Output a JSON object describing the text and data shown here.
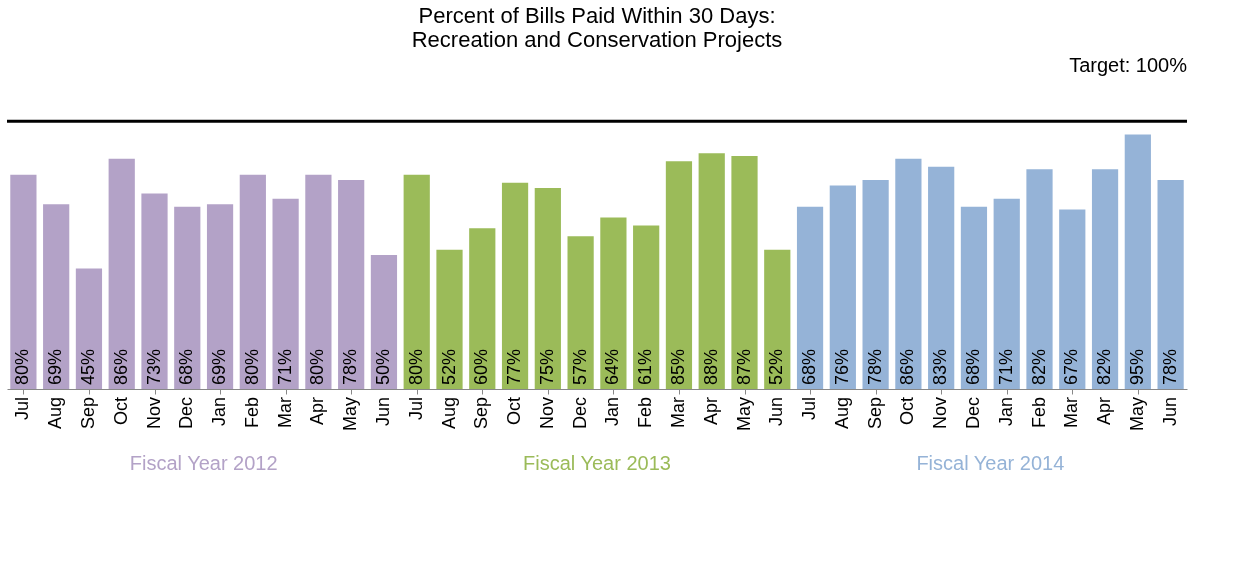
{
  "chart_data": {
    "type": "bar",
    "title": [
      "Percent of Bills Paid Within 30 Days:",
      "Recreation and Conservation Projects"
    ],
    "categories": [
      "Jul",
      "Aug",
      "Sep",
      "Oct",
      "Nov",
      "Dec",
      "Jan",
      "Feb",
      "Mar",
      "Apr",
      "May",
      "Jun",
      "Jul",
      "Aug",
      "Sep",
      "Oct",
      "Nov",
      "Dec",
      "Jan",
      "Feb",
      "Mar",
      "Apr",
      "May",
      "Jun",
      "Jul",
      "Aug",
      "Sep",
      "Oct",
      "Nov",
      "Dec",
      "Jan",
      "Feb",
      "Mar",
      "Apr",
      "May",
      "Jun"
    ],
    "series": [
      {
        "name": "Fiscal Year 2012",
        "color": "#b3a2c7",
        "values": [
          80,
          69,
          45,
          86,
          73,
          68,
          69,
          80,
          71,
          80,
          78,
          50,
          null,
          null,
          null,
          null,
          null,
          null,
          null,
          null,
          null,
          null,
          null,
          null,
          null,
          null,
          null,
          null,
          null,
          null,
          null,
          null,
          null,
          null,
          null,
          null
        ],
        "value_labels": [
          "80%",
          "69%",
          "45%",
          "86%",
          "73%",
          "68%",
          "69%",
          "80%",
          "71%",
          "80%",
          "78%",
          "50%",
          null,
          null,
          null,
          null,
          null,
          null,
          null,
          null,
          null,
          null,
          null,
          null,
          null,
          null,
          null,
          null,
          null,
          null,
          null,
          null,
          null,
          null,
          null,
          null
        ]
      },
      {
        "name": "Fiscal Year 2013",
        "color": "#9bbb59",
        "values": [
          null,
          null,
          null,
          null,
          null,
          null,
          null,
          null,
          null,
          null,
          null,
          null,
          80,
          52,
          60,
          77,
          75,
          57,
          64,
          61,
          85,
          88,
          87,
          52,
          null,
          null,
          null,
          null,
          null,
          null,
          null,
          null,
          null,
          null,
          null,
          null
        ],
        "value_labels": [
          null,
          null,
          null,
          null,
          null,
          null,
          null,
          null,
          null,
          null,
          null,
          null,
          "80%",
          "52%",
          "60%",
          "77%",
          "75%",
          "57%",
          "64%",
          "61%",
          "85%",
          "88%",
          "87%",
          "52%",
          null,
          null,
          null,
          null,
          null,
          null,
          null,
          null,
          null,
          null,
          null,
          null
        ]
      },
      {
        "name": "Fiscal Year 2014",
        "color": "#95b3d7",
        "values": [
          null,
          null,
          null,
          null,
          null,
          null,
          null,
          null,
          null,
          null,
          null,
          null,
          null,
          null,
          null,
          null,
          null,
          null,
          null,
          null,
          null,
          null,
          null,
          null,
          68,
          76,
          78,
          86,
          83,
          68,
          71,
          82,
          67,
          82,
          95,
          78
        ],
        "value_labels": [
          null,
          null,
          null,
          null,
          null,
          null,
          null,
          null,
          null,
          null,
          null,
          null,
          null,
          null,
          null,
          null,
          null,
          null,
          null,
          null,
          null,
          null,
          null,
          null,
          "68%",
          "76%",
          "78%",
          "86%",
          "83%",
          "68%",
          "71%",
          "82%",
          "67%",
          "82%",
          "95%",
          "78%"
        ]
      }
    ],
    "ref_lines": [
      {
        "axis": "y",
        "value": 100,
        "label": "Target: 100%",
        "color": "#000000"
      }
    ],
    "legend": false,
    "grid": false
  }
}
